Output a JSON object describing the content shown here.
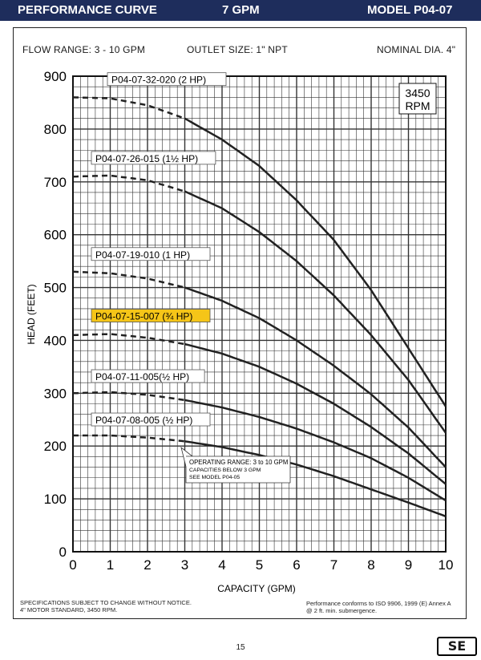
{
  "header": {
    "left": "PERFORMANCE CURVE",
    "center": "7 GPM",
    "right": "MODEL  P04-07"
  },
  "specs": {
    "flow_range": "FLOW RANGE: 3 - 10 GPM",
    "outlet": "OUTLET SIZE: 1\" NPT",
    "diameter": "NOMINAL DIA. 4\""
  },
  "rpm": [
    "3450",
    "RPM"
  ],
  "note": [
    "OPERATING RANGE: 3 to 10 GPM",
    "CAPACITIES BELOW 3 GPM",
    "SEE MODEL P04-05"
  ],
  "footer": {
    "left": [
      "SPECIFICATIONS SUBJECT TO CHANGE WITHOUT NOTICE.",
      "4\" MOTOR STANDARD, 3450 RPM."
    ],
    "right": [
      "Performance conforms to ISO 9906, 1999 (E) Annex A",
      "@ 2 ft. min. submergence."
    ],
    "page": "15",
    "logo": "SE"
  },
  "colors": {
    "banner": "#1e2d5c",
    "highlight": "#f5c518",
    "curve": "#222222",
    "grid": "#333333"
  },
  "chart_data": {
    "type": "line",
    "xlabel": "CAPACITY (GPM)",
    "ylabel": "HEAD (FEET)",
    "xlim": [
      0,
      10
    ],
    "ylim": [
      0,
      900
    ],
    "xticks": [
      0,
      1,
      2,
      3,
      4,
      5,
      6,
      7,
      8,
      9,
      10
    ],
    "yticks": [
      0,
      100,
      200,
      300,
      400,
      500,
      600,
      700,
      800,
      900
    ],
    "grid": true,
    "dashed_below_x": 3,
    "highlighted_series": "P04-07-15-007 (¾ HP)",
    "series": [
      {
        "name": "P04-07-32-020 (2 HP)",
        "x": [
          0,
          1,
          2,
          3,
          4,
          5,
          6,
          7,
          8,
          9,
          10
        ],
        "y": [
          860,
          858,
          845,
          820,
          780,
          730,
          665,
          590,
          495,
          385,
          275
        ]
      },
      {
        "name": "P04-07-26-015 (1½ HP)",
        "x": [
          0,
          1,
          2,
          3,
          4,
          5,
          6,
          7,
          8,
          9,
          10
        ],
        "y": [
          710,
          712,
          703,
          682,
          650,
          605,
          550,
          485,
          410,
          325,
          225
        ]
      },
      {
        "name": "P04-07-19-010 (1 HP)",
        "x": [
          0,
          1,
          2,
          3,
          4,
          5,
          6,
          7,
          8,
          9,
          10
        ],
        "y": [
          530,
          527,
          517,
          500,
          475,
          442,
          400,
          352,
          298,
          235,
          160
        ]
      },
      {
        "name": "P04-07-15-007 (¾ HP)",
        "x": [
          0,
          1,
          2,
          3,
          4,
          5,
          6,
          7,
          8,
          9,
          10
        ],
        "y": [
          410,
          412,
          405,
          393,
          375,
          350,
          318,
          280,
          236,
          186,
          128
        ]
      },
      {
        "name": "P04-07-11-005(½ HP)",
        "x": [
          0,
          1,
          2,
          3,
          4,
          5,
          6,
          7,
          8,
          9,
          10
        ],
        "y": [
          300,
          302,
          297,
          287,
          273,
          255,
          233,
          207,
          177,
          140,
          97
        ]
      },
      {
        "name": "P04-07-08-005 (½ HP)",
        "x": [
          0,
          1,
          2,
          3,
          4,
          5,
          6,
          7,
          8,
          9,
          10
        ],
        "y": [
          220,
          220,
          216,
          209,
          198,
          183,
          165,
          143,
          118,
          93,
          67
        ]
      }
    ]
  }
}
